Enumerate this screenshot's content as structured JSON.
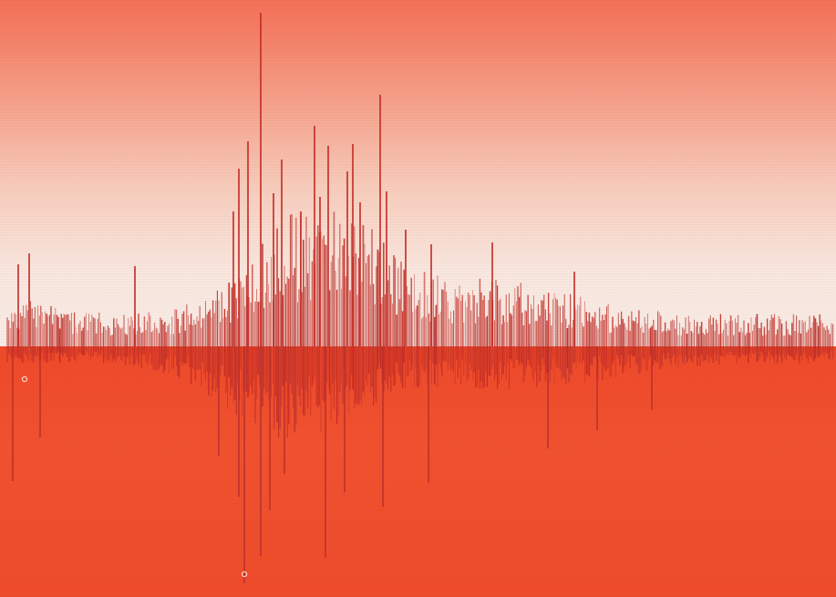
{
  "scene": {
    "description_type": "abstract seismogram-like waveform print",
    "colors": {
      "sky_top": "#f37056",
      "sky_bottom": "#f7ece6",
      "ground": "#f0502a",
      "stroke_upper": "#c42a22",
      "stroke_lower": "#b8302c"
    },
    "seed": 20240611
  }
}
